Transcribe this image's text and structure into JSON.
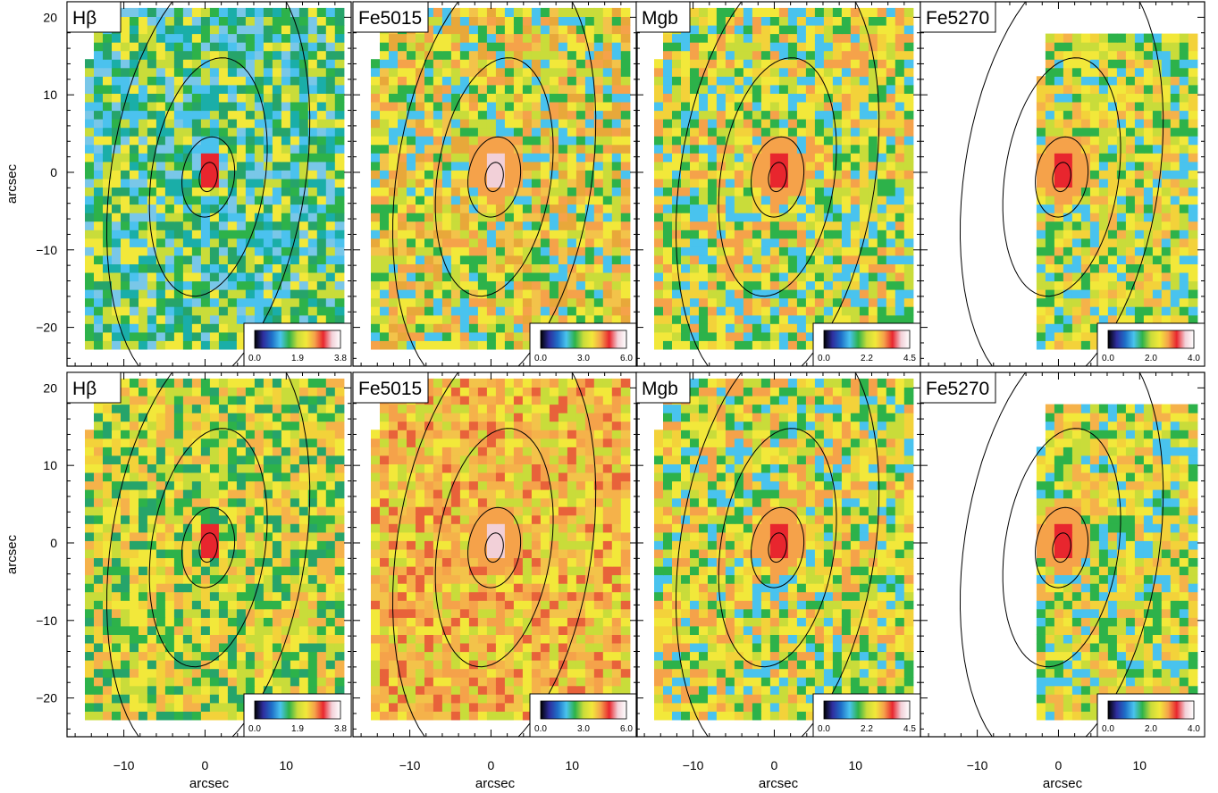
{
  "figure": {
    "xlabel": "arcsec",
    "ylabel": "arcsec",
    "xlim": [
      -17,
      18
    ],
    "ylim": [
      -25,
      22
    ],
    "xticks": [
      -10,
      0,
      10
    ],
    "yticks": [
      20,
      10,
      0,
      -10,
      -20
    ],
    "xtick_labels": [
      "−10",
      "0",
      "10"
    ],
    "ytick_labels": [
      "20",
      "10",
      "0",
      "−10",
      "−20"
    ]
  },
  "chart_data": [
    {
      "type": "heatmap",
      "row": 1,
      "col": 1,
      "title": "Hβ",
      "colorbar_ticks": [
        "0.0",
        "1.9",
        "3.8"
      ],
      "vmax": 3.8
    },
    {
      "type": "heatmap",
      "row": 1,
      "col": 2,
      "title": "Fe5015",
      "colorbar_ticks": [
        "0.0",
        "3.0",
        "6.0"
      ],
      "vmax": 6.0
    },
    {
      "type": "heatmap",
      "row": 1,
      "col": 3,
      "title": "Mgb",
      "colorbar_ticks": [
        "0.0",
        "2.2",
        "4.5"
      ],
      "vmax": 4.5
    },
    {
      "type": "heatmap",
      "row": 1,
      "col": 4,
      "title": "Fe5270",
      "colorbar_ticks": [
        "0.0",
        "2.0",
        "4.0"
      ],
      "vmax": 4.0
    },
    {
      "type": "heatmap",
      "row": 2,
      "col": 1,
      "title": "Hβ",
      "colorbar_ticks": [
        "0.0",
        "1.9",
        "3.8"
      ],
      "vmax": 3.8
    },
    {
      "type": "heatmap",
      "row": 2,
      "col": 2,
      "title": "Fe5015",
      "colorbar_ticks": [
        "0.0",
        "3.0",
        "6.0"
      ],
      "vmax": 6.0
    },
    {
      "type": "heatmap",
      "row": 2,
      "col": 3,
      "title": "Mgb",
      "colorbar_ticks": [
        "0.0",
        "2.2",
        "4.5"
      ],
      "vmax": 4.5
    },
    {
      "type": "heatmap",
      "row": 2,
      "col": 4,
      "title": "Fe5270",
      "colorbar_ticks": [
        "0.0",
        "2.0",
        "4.0"
      ],
      "vmax": 4.0
    }
  ],
  "colors": {
    "colormap": [
      "#000000",
      "#2e2e9e",
      "#1f6fc8",
      "#49c3ee",
      "#2db24a",
      "#c9dc3a",
      "#f2e83a",
      "#f5a24a",
      "#e8262e",
      "#f2d0d8",
      "#ffffff"
    ]
  }
}
